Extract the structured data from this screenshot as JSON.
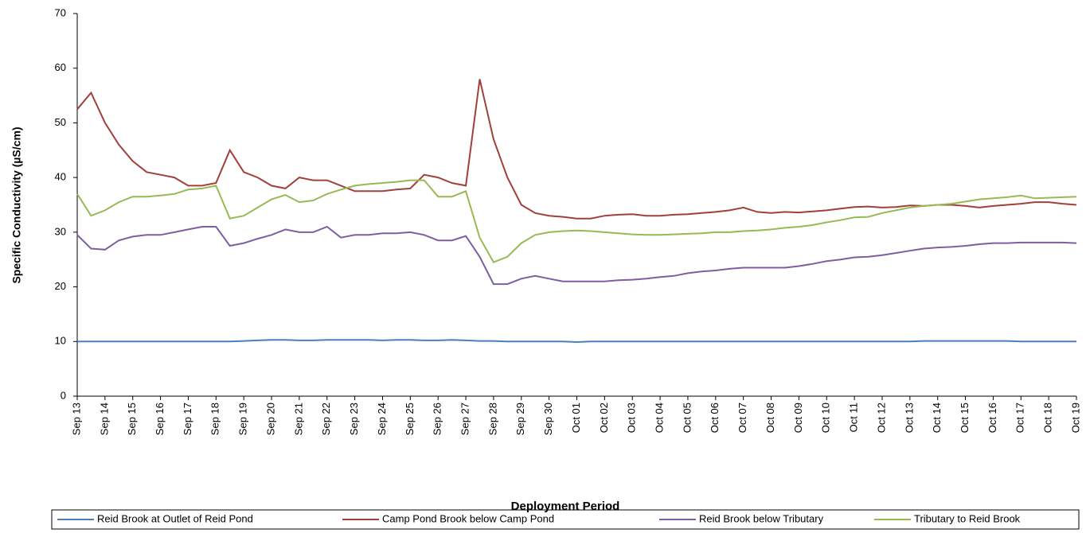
{
  "chart_data": {
    "type": "line",
    "x_label": "Deployment Period",
    "y_label": "Specific Conductivity  (µS/cm)",
    "categories": [
      "Sep 13",
      null,
      "Sep 14",
      null,
      "Sep 15",
      null,
      "Sep 16",
      null,
      "Sep 17",
      null,
      "Sep 18",
      null,
      "Sep 19",
      null,
      "Sep 20",
      null,
      "Sep 21",
      null,
      "Sep 22",
      null,
      "Sep 23",
      null,
      "Sep 24",
      null,
      "Sep 25",
      null,
      "Sep 26",
      null,
      "Sep 27",
      null,
      "Sep 28",
      null,
      "Sep 29",
      null,
      "Sep 30",
      null,
      "Oct 01",
      null,
      "Oct 02",
      null,
      "Oct 03",
      null,
      "Oct 04",
      null,
      "Oct 05",
      null,
      "Oct 06",
      null,
      "Oct 07",
      null,
      "Oct 08",
      null,
      "Oct 09",
      null,
      "Oct 10",
      null,
      "Oct 11",
      null,
      "Oct 12",
      null,
      "Oct 13",
      null,
      "Oct 14",
      null,
      "Oct 15",
      null,
      "Oct 16",
      null,
      "Oct 17",
      null,
      "Oct 18",
      null,
      "Oct 19"
    ],
    "series": [
      {
        "name": "Reid Brook at Outlet of Reid Pond",
        "color": "#4a7ebb",
        "values": [
          10,
          10,
          10,
          10,
          10,
          10,
          10,
          10,
          10,
          10,
          10,
          10,
          10.1,
          10.2,
          10.3,
          10.3,
          10.2,
          10.2,
          10.3,
          10.3,
          10.3,
          10.3,
          10.2,
          10.3,
          10.3,
          10.2,
          10.2,
          10.3,
          10.2,
          10.1,
          10.1,
          10,
          10,
          10,
          10,
          10,
          9.9,
          10,
          10,
          10,
          10,
          10,
          10,
          10,
          10,
          10,
          10,
          10,
          10,
          10,
          10,
          10,
          10,
          10,
          10,
          10,
          10,
          10,
          10,
          10,
          10,
          10.1,
          10.1,
          10.1,
          10.1,
          10.1,
          10.1,
          10.1,
          10,
          10,
          10,
          10,
          10
        ]
      },
      {
        "name": "Camp Pond Brook below Camp Pond",
        "color": "#a0403c",
        "values": [
          52.5,
          55.5,
          50,
          46,
          43,
          41,
          40.5,
          40,
          38.5,
          38.5,
          39,
          45,
          41,
          40,
          38.5,
          38,
          40,
          39.5,
          39.5,
          38.5,
          37.5,
          37.5,
          37.5,
          37.8,
          38,
          40.5,
          40,
          39,
          38.5,
          58,
          47,
          40,
          35,
          33.5,
          33,
          32.8,
          32.5,
          32.5,
          33,
          33.2,
          33.3,
          33,
          33,
          33.2,
          33.3,
          33.5,
          33.7,
          34,
          34.5,
          33.7,
          33.5,
          33.7,
          33.6,
          33.8,
          34,
          34.3,
          34.6,
          34.7,
          34.5,
          34.6,
          34.9,
          34.8,
          35,
          35,
          34.8,
          34.5,
          34.8,
          35,
          35.2,
          35.5,
          35.5,
          35.2,
          35
        ]
      },
      {
        "name": "Reid Brook below Tributary",
        "color": "#7d5fa0",
        "values": [
          29.5,
          27,
          26.8,
          28.5,
          29.2,
          29.5,
          29.5,
          30,
          30.5,
          31,
          31,
          27.5,
          28,
          28.8,
          29.5,
          30.5,
          30,
          30,
          31,
          29,
          29.5,
          29.5,
          29.8,
          29.8,
          30,
          29.5,
          28.5,
          28.5,
          29.3,
          25.5,
          20.5,
          20.5,
          21.5,
          22,
          21.5,
          21,
          21,
          21,
          21,
          21.2,
          21.3,
          21.5,
          21.8,
          22,
          22.5,
          22.8,
          23,
          23.3,
          23.5,
          23.5,
          23.5,
          23.5,
          23.8,
          24.2,
          24.7,
          25,
          25.4,
          25.5,
          25.8,
          26.2,
          26.6,
          27,
          27.2,
          27.3,
          27.5,
          27.8,
          28,
          28,
          28.1,
          28.1,
          28.1,
          28.1,
          28
        ]
      },
      {
        "name": "Tributary to Reid Brook",
        "color": "#98b954",
        "values": [
          37,
          33,
          34,
          35.5,
          36.5,
          36.5,
          36.7,
          37,
          37.8,
          38,
          38.5,
          32.5,
          33,
          34.5,
          36,
          36.8,
          35.5,
          35.8,
          37,
          37.8,
          38.5,
          38.8,
          39,
          39.2,
          39.5,
          39.5,
          36.5,
          36.5,
          37.5,
          29,
          24.5,
          25.5,
          28,
          29.5,
          30,
          30.2,
          30.3,
          30.2,
          30,
          29.8,
          29.6,
          29.5,
          29.5,
          29.6,
          29.7,
          29.8,
          30,
          30,
          30.2,
          30.3,
          30.5,
          30.8,
          31,
          31.3,
          31.8,
          32.2,
          32.7,
          32.8,
          33.5,
          34,
          34.5,
          34.8,
          35,
          35.2,
          35.6,
          36,
          36.2,
          36.4,
          36.7,
          36.2,
          36.3,
          36.4,
          36.5
        ]
      }
    ],
    "ylim": [
      0,
      70
    ],
    "yticks": [
      0,
      10,
      20,
      30,
      40,
      50,
      60,
      70
    ],
    "grid": false,
    "legend": "bottom"
  }
}
